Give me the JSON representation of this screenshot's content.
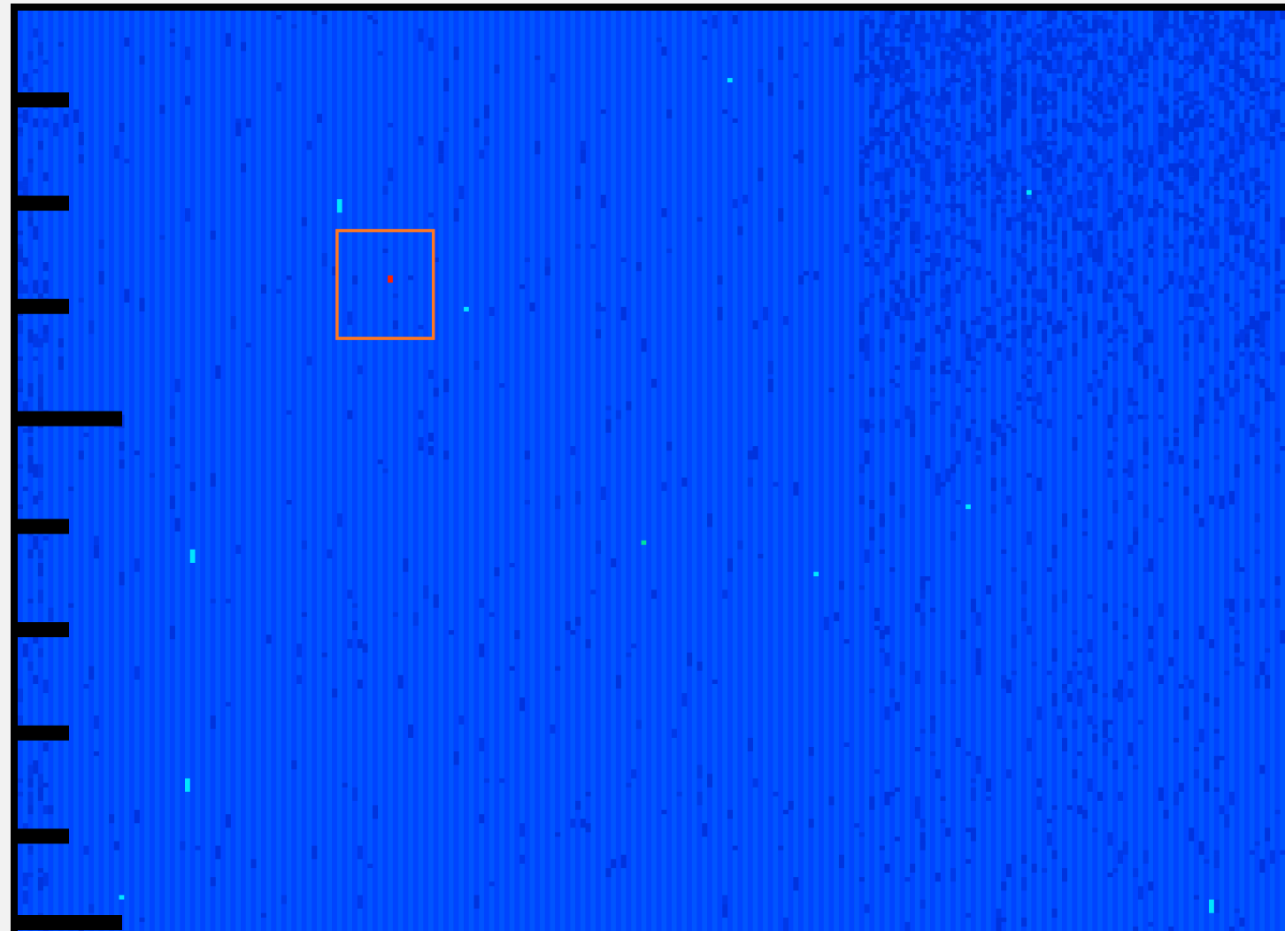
{
  "chart_data": {
    "type": "heatmap",
    "title": "",
    "xlabel": "",
    "ylabel": "",
    "grid": false,
    "legend": "none",
    "colors": {
      "background": "#f2f2f2",
      "frame": "#000000",
      "low": "#0033dd",
      "base_a": "#0044ff",
      "base_b": "#0055ff",
      "dim": "#0039e8",
      "hot": "#00e5ff",
      "hot_green": "#00e0a0",
      "marker": "#ff2200",
      "selection": "#ff7722"
    },
    "rows": 205,
    "cols": 250,
    "y_ticks": [
      {
        "row": 19,
        "major": false
      },
      {
        "row": 42,
        "major": false
      },
      {
        "row": 65,
        "major": false
      },
      {
        "row": 90,
        "major": true
      },
      {
        "row": 114,
        "major": false
      },
      {
        "row": 137,
        "major": false
      },
      {
        "row": 160,
        "major": false
      },
      {
        "row": 183,
        "major": false
      },
      {
        "row": 206,
        "major": true
      }
    ],
    "hot_cells": [
      {
        "col": 140,
        "row": 15,
        "len": 1
      },
      {
        "col": 63,
        "row": 42,
        "len": 3
      },
      {
        "col": 199,
        "row": 40,
        "len": 1
      },
      {
        "col": 88,
        "row": 66,
        "len": 1
      },
      {
        "col": 187,
        "row": 110,
        "len": 1
      },
      {
        "col": 34,
        "row": 120,
        "len": 3
      },
      {
        "col": 123,
        "row": 118,
        "len": 1,
        "green": true
      },
      {
        "col": 157,
        "row": 125,
        "len": 1
      },
      {
        "col": 33,
        "row": 171,
        "len": 3
      },
      {
        "col": 20,
        "row": 197,
        "len": 1
      },
      {
        "col": 235,
        "row": 198,
        "len": 3
      }
    ],
    "marker": {
      "col": 73,
      "row": 59
    },
    "selection": {
      "col0": 63,
      "row0": 49,
      "col1": 82,
      "row1": 73
    }
  }
}
